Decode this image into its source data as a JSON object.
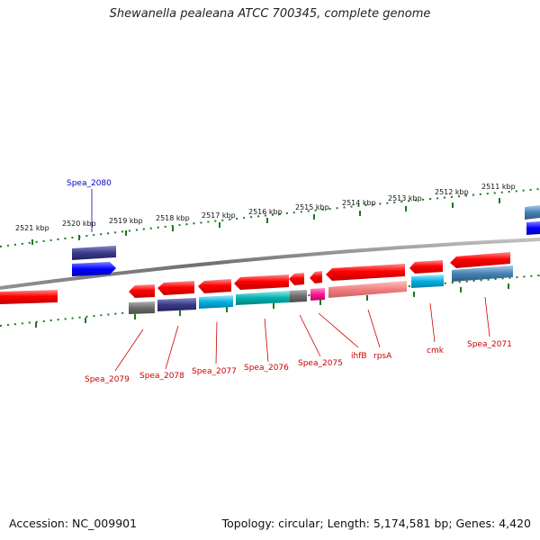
{
  "title": "Shewanella pealeana ATCC 700345, complete genome",
  "footer": {
    "accession": "Accession: NC_009901",
    "summary": "Topology: circular; Length: 5,174,581 bp; Genes: 4,420"
  },
  "ruler": {
    "ticks": [
      "2521 kbp",
      "2520 kbp",
      "2519 kbp",
      "2518 kbp",
      "2517 kbp",
      "2516 kbp",
      "2515 kbp",
      "2514 kbp",
      "2513 kbp",
      "2512 kbp",
      "2511 kbp"
    ]
  },
  "genes": {
    "labels": [
      "Spea_2080",
      "Spea_2079",
      "Spea_2078",
      "Spea_2077",
      "Spea_2076",
      "Spea_2075",
      "ihfB",
      "rpsA",
      "cmk",
      "Spea_2071"
    ]
  },
  "colors": {
    "cds_red": "#ff0000",
    "cog_dark_blue": "#3a3a8c",
    "cog_blue": "#0000ff",
    "cog_cyan": "#00b0e0",
    "cog_teal": "#00b0b0",
    "cog_gray": "#6e6e6e",
    "cog_pink": "#ff1493",
    "cog_salmon": "#f08080",
    "cog_steel": "#4682b4",
    "ruler_green": "#1a7a1a",
    "backbone": "#808080"
  }
}
